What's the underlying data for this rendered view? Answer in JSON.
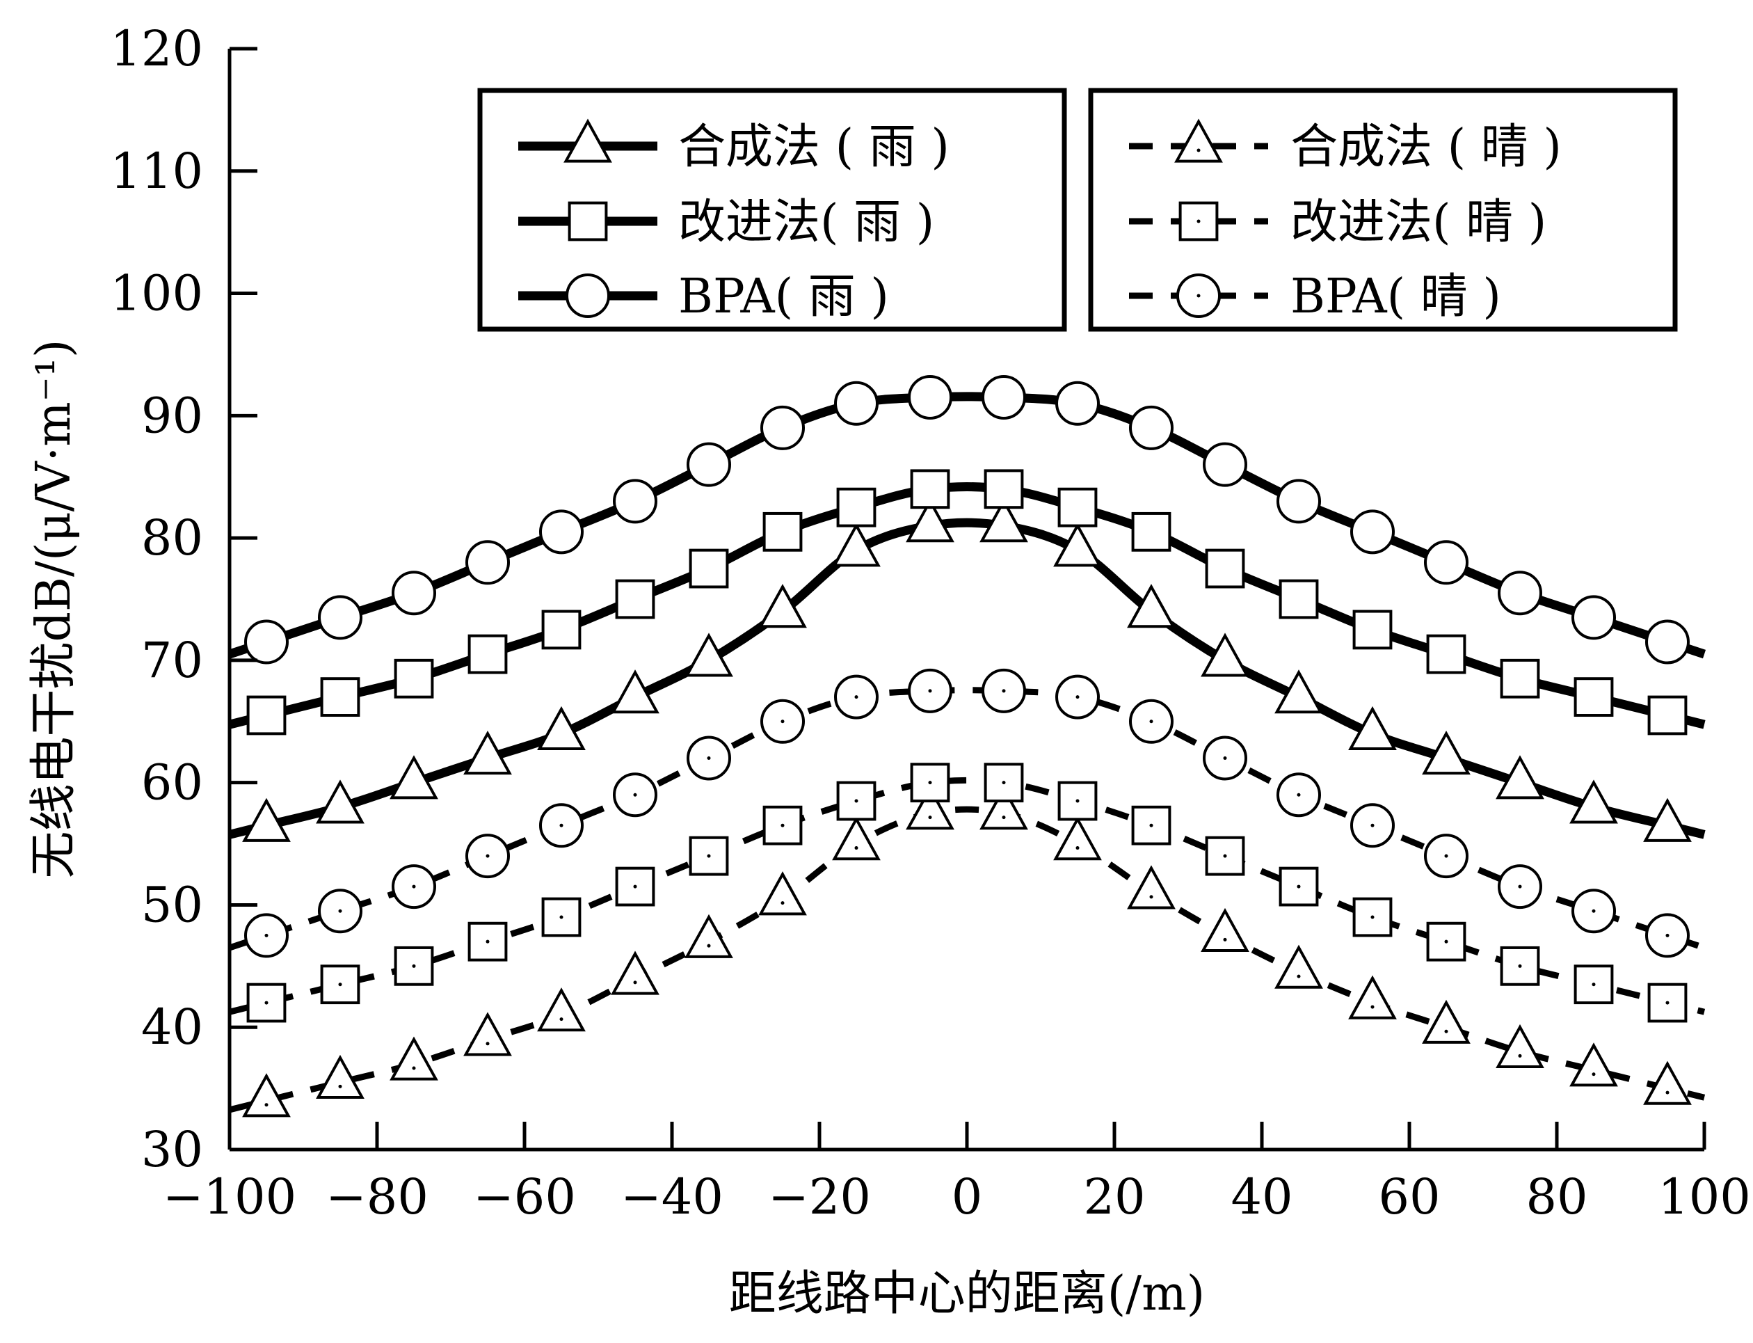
{
  "chart_data": {
    "type": "line",
    "title": "",
    "xlabel": "距线路中心的距离(/m)",
    "ylabel": "无线电干扰dB/(μ/V·m⁻¹)",
    "xlim": [
      -100,
      100
    ],
    "ylim": [
      30,
      120
    ],
    "xticks": [
      -100,
      -80,
      -60,
      -40,
      -20,
      0,
      20,
      40,
      60,
      80,
      100
    ],
    "yticks": [
      30,
      40,
      50,
      60,
      70,
      80,
      90,
      100,
      110,
      120
    ],
    "xtick_labels": [
      "−100",
      "−80",
      "−60",
      "−40",
      "−20",
      "0",
      "20",
      "40",
      "60",
      "80",
      "100"
    ],
    "ytick_labels": [
      "30",
      "40",
      "50",
      "60",
      "70",
      "80",
      "90",
      "100",
      "110",
      "120"
    ],
    "grid": false,
    "legend": {
      "placement": "top",
      "columns": 2
    },
    "x": [
      -95,
      -85,
      -75,
      -65,
      -55,
      -45,
      -35,
      -25,
      -15,
      -5,
      5,
      15,
      25,
      35,
      45,
      55,
      65,
      75,
      85,
      95
    ],
    "series": [
      {
        "name": "合成法 ( 雨 )",
        "line": "solid",
        "marker": "triangle",
        "values": [
          56.5,
          58,
          60,
          62,
          64,
          67,
          70,
          74,
          79,
          81,
          81,
          79,
          74,
          70,
          67,
          64,
          62,
          60,
          58,
          56.5
        ]
      },
      {
        "name": "改进法( 雨 )",
        "line": "solid",
        "marker": "square",
        "values": [
          65.5,
          67,
          68.5,
          70.5,
          72.5,
          75,
          77.5,
          80.5,
          82.5,
          84,
          84,
          82.5,
          80.5,
          77.5,
          75,
          72.5,
          70.5,
          68.5,
          67,
          65.5
        ]
      },
      {
        "name": "BPA( 雨 )",
        "line": "solid",
        "marker": "circle",
        "values": [
          71.5,
          73.5,
          75.5,
          78,
          80.5,
          83,
          86,
          89,
          91,
          91.5,
          91.5,
          91,
          89,
          86,
          83,
          80.5,
          78,
          75.5,
          73.5,
          71.5
        ]
      },
      {
        "name": "合成法 ( 晴 )",
        "line": "dashed",
        "marker": "triangle",
        "values": [
          34,
          35.5,
          37,
          39,
          41,
          44,
          47,
          50.5,
          55,
          57.5,
          57.5,
          55,
          51,
          47.5,
          44.5,
          42,
          40,
          38,
          36.5,
          35
        ]
      },
      {
        "name": "改进法( 晴 )",
        "line": "dashed",
        "marker": "square",
        "values": [
          42,
          43.5,
          45,
          47,
          49,
          51.5,
          54,
          56.5,
          58.5,
          60,
          60,
          58.5,
          56.5,
          54,
          51.5,
          49,
          47,
          45,
          43.5,
          42
        ]
      },
      {
        "name": "BPA( 晴 )",
        "line": "dashed",
        "marker": "circle",
        "values": [
          47.5,
          49.5,
          51.5,
          54,
          56.5,
          59,
          62,
          65,
          67,
          67.5,
          67.5,
          67,
          65,
          62,
          59,
          56.5,
          54,
          51.5,
          49.5,
          47.5
        ]
      }
    ]
  }
}
